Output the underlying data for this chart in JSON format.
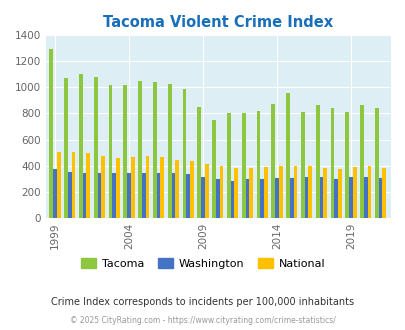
{
  "title": "Tacoma Violent Crime Index",
  "title_color": "#1a6fba",
  "subtitle": "Crime Index corresponds to incidents per 100,000 inhabitants",
  "footer": "© 2025 CityRating.com - https://www.cityrating.com/crime-statistics/",
  "years": [
    1999,
    2000,
    2001,
    2002,
    2003,
    2004,
    2005,
    2006,
    2007,
    2008,
    2009,
    2010,
    2011,
    2012,
    2013,
    2014,
    2015,
    2016,
    2017,
    2018,
    2019,
    2020,
    2021
  ],
  "tacoma": [
    1295,
    1070,
    1100,
    1080,
    1020,
    1020,
    1050,
    1045,
    1025,
    990,
    850,
    750,
    800,
    800,
    820,
    870,
    960,
    810,
    865,
    845,
    810,
    865,
    845
  ],
  "washington": [
    375,
    350,
    345,
    345,
    345,
    345,
    345,
    345,
    340,
    335,
    315,
    300,
    280,
    295,
    295,
    305,
    305,
    310,
    315,
    300,
    310,
    315,
    305
  ],
  "national": [
    505,
    505,
    495,
    470,
    455,
    465,
    475,
    465,
    445,
    435,
    410,
    395,
    385,
    385,
    390,
    395,
    400,
    400,
    385,
    375,
    390,
    395,
    380
  ],
  "tacoma_color": "#8dc63f",
  "washington_color": "#4472c4",
  "national_color": "#ffc000",
  "plot_bg": "#ddeef4",
  "ylim": [
    0,
    1400
  ],
  "yticks": [
    0,
    200,
    400,
    600,
    800,
    1000,
    1200,
    1400
  ],
  "xtick_years": [
    1999,
    2004,
    2009,
    2014,
    2019
  ],
  "bar_width": 0.25,
  "figsize": [
    4.06,
    3.3
  ],
  "dpi": 100
}
